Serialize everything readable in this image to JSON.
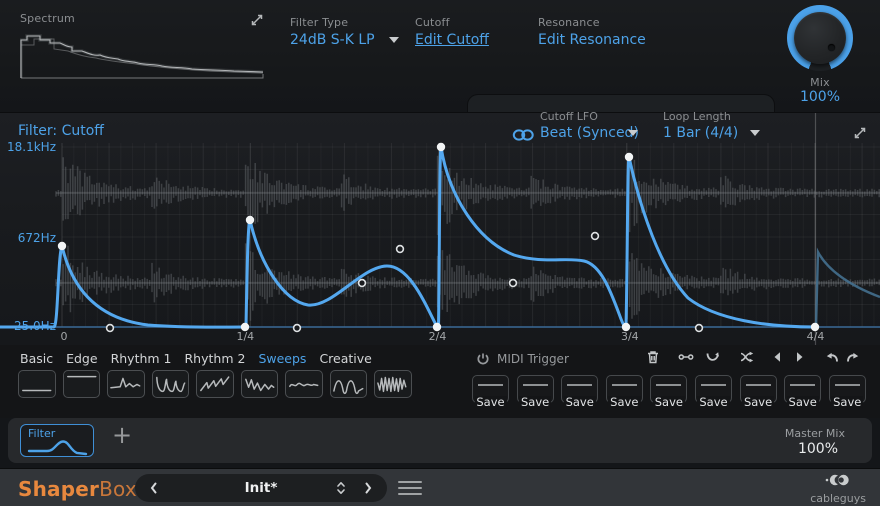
{
  "header": {
    "spectrum_label": "Spectrum",
    "filter_type": {
      "label": "Filter Type",
      "value": "24dB S-K LP"
    },
    "cutoff": {
      "label": "Cutoff",
      "link": "Edit Cutoff"
    },
    "resonance": {
      "label": "Resonance",
      "link": "Edit Resonance"
    },
    "mix": {
      "label": "Mix",
      "value": "100%"
    }
  },
  "lfo_bar": {
    "cutoff_lfo": {
      "label": "Cutoff LFO",
      "value": "Beat (Synced)"
    },
    "loop_length": {
      "label": "Loop Length",
      "value": "1 Bar (4/4)"
    }
  },
  "editor": {
    "title": "Filter: Cutoff",
    "freq_labels": [
      "18.1kHz",
      "672Hz",
      "25.0Hz"
    ],
    "time_labels": [
      "0",
      "1/4",
      "2/4",
      "3/4",
      "4/4"
    ],
    "accent": "#54a8ef",
    "y_axis": {
      "top": "18.1kHz",
      "mid": "672Hz",
      "bottom": "25.0Hz"
    },
    "curve_nodes": [
      [
        62,
        133
      ],
      [
        245,
        214
      ],
      [
        250,
        107
      ],
      [
        437,
        214
      ],
      [
        441,
        34
      ],
      [
        626,
        214
      ],
      [
        629,
        44
      ],
      [
        815,
        214
      ]
    ],
    "curve_handles": [
      [
        110,
        215
      ],
      [
        297,
        215
      ],
      [
        362,
        170
      ],
      [
        400,
        136
      ],
      [
        513,
        170
      ],
      [
        595,
        123
      ],
      [
        699,
        215
      ]
    ]
  },
  "wave_selector": {
    "tabs": [
      {
        "label": "Basic",
        "active": false
      },
      {
        "label": "Edge",
        "active": false
      },
      {
        "label": "Rhythm 1",
        "active": false
      },
      {
        "label": "Rhythm 2",
        "active": false
      },
      {
        "label": "Sweeps",
        "active": true
      },
      {
        "label": "Creative",
        "active": false
      }
    ],
    "shapes": [
      "flat-low",
      "flat-high",
      "spike-decay",
      "triple-scoop",
      "rising-saw",
      "jagged-fall",
      "small-wiggle",
      "sine-humps",
      "dense-zigzag"
    ],
    "midi_trigger_label": "MIDI Trigger",
    "tools": [
      "trash",
      "node-link",
      "rotate",
      "shuffle",
      "prev",
      "next",
      "undo",
      "redo"
    ],
    "save_label": "Save",
    "save_slots": 9
  },
  "lanes": {
    "filter_tab_label": "Filter",
    "add_label": "+",
    "master_mix": {
      "label": "Master Mix",
      "value": "100%"
    }
  },
  "footer": {
    "logo_bold": "Shaper",
    "logo_light": "Box",
    "preset_name": "Init*",
    "brand": "cableguys"
  }
}
